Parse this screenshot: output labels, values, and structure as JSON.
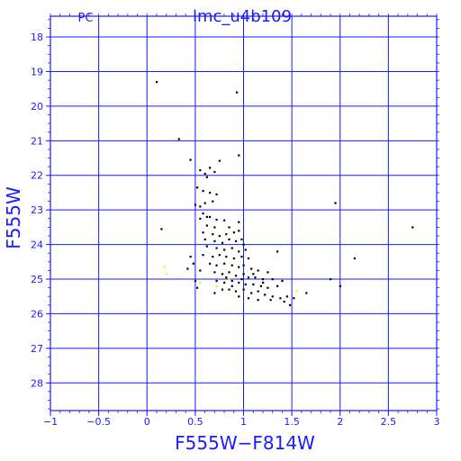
{
  "chart_data": {
    "type": "scatter",
    "title": "lmc_u4b109",
    "corner_label": "PC",
    "xlabel": "F555W−F814W",
    "ylabel": "F555W",
    "xlim": [
      -1,
      3
    ],
    "ylim": [
      28.8,
      17.4
    ],
    "y_inverted": true,
    "grid": true,
    "x_ticks": [
      -1,
      -0.5,
      0,
      0.5,
      1,
      1.5,
      2,
      2.5,
      3
    ],
    "x_tick_labels": [
      "−1",
      "−0.5",
      "0",
      "0.5",
      "1",
      "1.5",
      "2",
      "2.5",
      "3"
    ],
    "y_ticks": [
      18,
      19,
      20,
      21,
      22,
      23,
      24,
      25,
      26,
      27,
      28
    ],
    "y_tick_labels": [
      "18",
      "19",
      "20",
      "21",
      "22",
      "23",
      "24",
      "25",
      "26",
      "27",
      "28"
    ],
    "colors": {
      "frame": "#1a1aff",
      "points": "#000000",
      "highlight": "#ffee00"
    },
    "series": [
      {
        "color": "#000000",
        "points": [
          [
            0.1,
            19.3
          ],
          [
            0.93,
            19.6
          ],
          [
            0.33,
            20.95
          ],
          [
            0.95,
            21.42
          ],
          [
            0.45,
            21.55
          ],
          [
            0.75,
            21.58
          ],
          [
            0.65,
            21.78
          ],
          [
            0.55,
            21.85
          ],
          [
            0.6,
            21.95
          ],
          [
            0.7,
            21.9
          ],
          [
            0.62,
            22.05
          ],
          [
            0.52,
            22.35
          ],
          [
            0.58,
            22.45
          ],
          [
            0.65,
            22.5
          ],
          [
            0.72,
            22.55
          ],
          [
            0.5,
            22.85
          ],
          [
            0.55,
            22.9
          ],
          [
            0.6,
            22.8
          ],
          [
            0.68,
            22.75
          ],
          [
            0.58,
            23.1
          ],
          [
            0.62,
            23.2
          ],
          [
            0.55,
            23.25
          ],
          [
            0.65,
            23.2
          ],
          [
            0.72,
            23.28
          ],
          [
            0.8,
            23.3
          ],
          [
            0.62,
            23.45
          ],
          [
            0.7,
            23.5
          ],
          [
            0.85,
            23.5
          ],
          [
            0.95,
            23.35
          ],
          [
            0.58,
            23.65
          ],
          [
            0.68,
            23.7
          ],
          [
            0.75,
            23.75
          ],
          [
            0.82,
            23.7
          ],
          [
            0.9,
            23.65
          ],
          [
            0.95,
            23.6
          ],
          [
            0.6,
            23.85
          ],
          [
            0.7,
            23.9
          ],
          [
            0.78,
            23.95
          ],
          [
            0.85,
            23.85
          ],
          [
            0.92,
            23.9
          ],
          [
            0.98,
            23.85
          ],
          [
            1.0,
            24.0
          ],
          [
            0.62,
            24.05
          ],
          [
            0.72,
            24.1
          ],
          [
            0.8,
            24.15
          ],
          [
            0.88,
            24.1
          ],
          [
            0.95,
            24.2
          ],
          [
            1.02,
            24.15
          ],
          [
            0.58,
            24.3
          ],
          [
            0.68,
            24.35
          ],
          [
            0.75,
            24.3
          ],
          [
            0.82,
            24.35
          ],
          [
            0.9,
            24.4
          ],
          [
            0.98,
            24.35
          ],
          [
            1.05,
            24.4
          ],
          [
            0.65,
            24.55
          ],
          [
            0.72,
            24.6
          ],
          [
            0.8,
            24.55
          ],
          [
            0.88,
            24.6
          ],
          [
            0.95,
            24.65
          ],
          [
            1.0,
            24.6
          ],
          [
            1.08,
            24.7
          ],
          [
            1.15,
            24.75
          ],
          [
            1.25,
            24.8
          ],
          [
            0.7,
            24.8
          ],
          [
            0.78,
            24.85
          ],
          [
            0.85,
            24.8
          ],
          [
            0.92,
            24.9
          ],
          [
            1.0,
            24.85
          ],
          [
            1.05,
            24.95
          ],
          [
            1.12,
            24.95
          ],
          [
            1.2,
            25.0
          ],
          [
            1.3,
            25.0
          ],
          [
            1.4,
            25.05
          ],
          [
            0.72,
            25.05
          ],
          [
            0.8,
            25.1
          ],
          [
            0.88,
            25.05
          ],
          [
            0.95,
            25.1
          ],
          [
            1.02,
            25.15
          ],
          [
            1.1,
            25.15
          ],
          [
            1.18,
            25.2
          ],
          [
            1.25,
            25.25
          ],
          [
            1.35,
            25.2
          ],
          [
            0.78,
            25.3
          ],
          [
            0.85,
            25.3
          ],
          [
            0.92,
            25.35
          ],
          [
            1.0,
            25.3
          ],
          [
            1.08,
            25.4
          ],
          [
            1.15,
            25.35
          ],
          [
            1.22,
            25.45
          ],
          [
            1.3,
            25.5
          ],
          [
            1.38,
            25.55
          ],
          [
            1.45,
            25.5
          ],
          [
            1.52,
            25.55
          ],
          [
            0.95,
            25.5
          ],
          [
            1.05,
            25.55
          ],
          [
            1.15,
            25.6
          ],
          [
            1.28,
            25.6
          ],
          [
            1.42,
            25.65
          ],
          [
            1.48,
            25.75
          ],
          [
            0.45,
            24.35
          ],
          [
            0.48,
            24.55
          ],
          [
            0.55,
            24.75
          ],
          [
            0.42,
            24.7
          ],
          [
            0.5,
            25.05
          ],
          [
            0.52,
            25.25
          ],
          [
            0.7,
            25.4
          ],
          [
            0.15,
            23.55
          ],
          [
            1.35,
            24.2
          ],
          [
            1.65,
            25.4
          ],
          [
            1.95,
            22.8
          ],
          [
            2.15,
            24.4
          ],
          [
            2.0,
            25.2
          ],
          [
            2.75,
            23.5
          ],
          [
            1.9,
            25.0
          ],
          [
            0.82,
            24.95
          ],
          [
            0.88,
            25.2
          ],
          [
            0.98,
            25.0
          ],
          [
            1.1,
            24.85
          ],
          [
            1.2,
            25.1
          ]
        ]
      },
      {
        "color": "#ffee00",
        "points": [
          [
            0.18,
            24.65
          ],
          [
            0.2,
            24.85
          ],
          [
            0.55,
            25.1
          ],
          [
            1.55,
            25.35
          ],
          [
            0.72,
            25.2
          ],
          [
            0.85,
            25.0
          ]
        ]
      }
    ]
  }
}
